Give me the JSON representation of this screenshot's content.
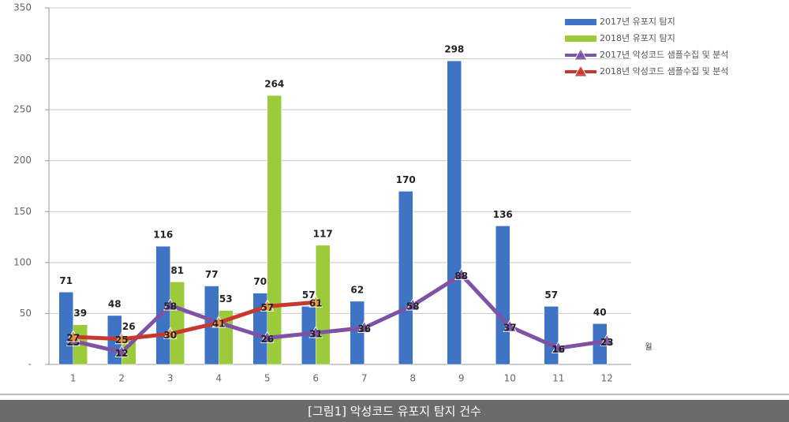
{
  "chart_data": {
    "type": "bar",
    "categories": [
      "1",
      "2",
      "3",
      "4",
      "5",
      "6",
      "7",
      "8",
      "9",
      "10",
      "11",
      "12"
    ],
    "x_label": "월",
    "series": [
      {
        "name": "2017년 유포지 탐지",
        "type": "bar",
        "color": "#3f74c4",
        "values": [
          71,
          48,
          116,
          77,
          70,
          57,
          62,
          170,
          298,
          136,
          57,
          40
        ]
      },
      {
        "name": "2018년 유포지 탐지",
        "type": "bar",
        "color": "#9bcb3b",
        "values": [
          39,
          26,
          81,
          53,
          264,
          117,
          null,
          null,
          null,
          null,
          null,
          null
        ]
      },
      {
        "name": "2017년 악성코드 샘플수집 및 분석",
        "type": "line",
        "color": "#7f52a6",
        "values": [
          23,
          12,
          58,
          41,
          26,
          31,
          36,
          58,
          88,
          37,
          16,
          23
        ]
      },
      {
        "name": "2018년 악성코드 샘플수집 및 분석",
        "type": "line",
        "color": "#c8382e",
        "values": [
          27,
          25,
          30,
          41,
          57,
          61,
          null,
          null,
          null,
          null,
          null,
          null
        ]
      }
    ],
    "ylim": [
      0,
      350
    ],
    "yticks": [
      {
        "value": 0,
        "label": "-"
      },
      50,
      100,
      150,
      200,
      250,
      300,
      350
    ],
    "grid": true,
    "legend": "top-right",
    "caption": "[그림1] 악성코드 유포지 탐지 건수"
  }
}
